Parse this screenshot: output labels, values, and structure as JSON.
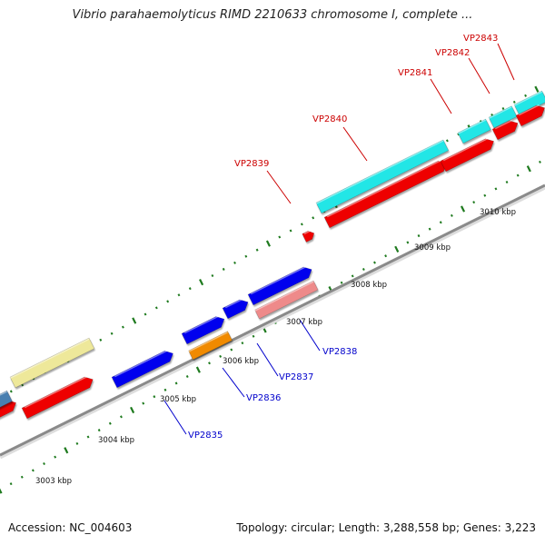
{
  "title": "Vibrio parahaemolyticus RIMD 2210633 chromosome I, complete ...",
  "footer": {
    "accession": "Accession: NC_004603",
    "summary": "Topology: circular; Length: 3,288,558 bp; Genes: 3,223"
  },
  "colors": {
    "backbone": "#8a8a8a",
    "tick": "#1e7a1e",
    "label_forward": "#cc0000",
    "label_reverse": "#0000cc",
    "cyan": "#22e6e6",
    "red": "#ee0000",
    "blue": "#0000ee",
    "salmon": "#ee8a8a",
    "orange": "#f08a00",
    "khaki": "#eee89a",
    "steel": "#4a7fb0"
  },
  "scale_labels": [
    "3003 kbp",
    "3004 kbp",
    "3005 kbp",
    "3006 kbp",
    "3007 kbp",
    "3008 kbp",
    "3009 kbp",
    "3010 kbp"
  ],
  "gene_labels_forward": [
    "VP2839",
    "VP2840",
    "VP2841",
    "VP2842",
    "VP2843"
  ],
  "gene_labels_reverse": [
    "VP2835",
    "VP2836",
    "VP2837",
    "VP2838"
  ]
}
